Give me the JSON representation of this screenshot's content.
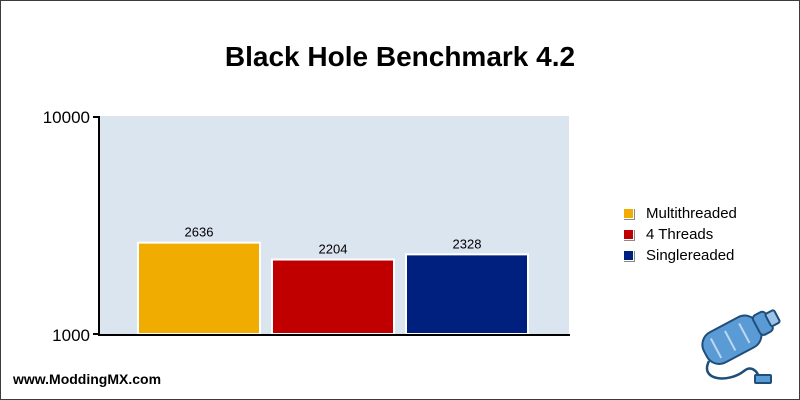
{
  "chart_data": {
    "type": "bar",
    "title": "Black Hole Benchmark 4.2",
    "xlabel": "",
    "ylabel": "",
    "yscale": "log",
    "ylim": [
      1000,
      10000
    ],
    "y_ticks": [
      "1000",
      "10000"
    ],
    "grid": false,
    "legend_position": "right",
    "series": [
      {
        "name": "Multithreaded",
        "value": 2636,
        "color": "#f0ac00"
      },
      {
        "name": "4 Threads",
        "value": 2204,
        "color": "#c00000"
      },
      {
        "name": "Singlereaded",
        "value": 2328,
        "color": "#002080"
      }
    ],
    "plot_background": "#dbe5ef"
  },
  "watermark": "www.ModdingMX.com",
  "logo": {
    "icon": "bottle-usb-logo-icon",
    "color": "#5b9bd5"
  }
}
